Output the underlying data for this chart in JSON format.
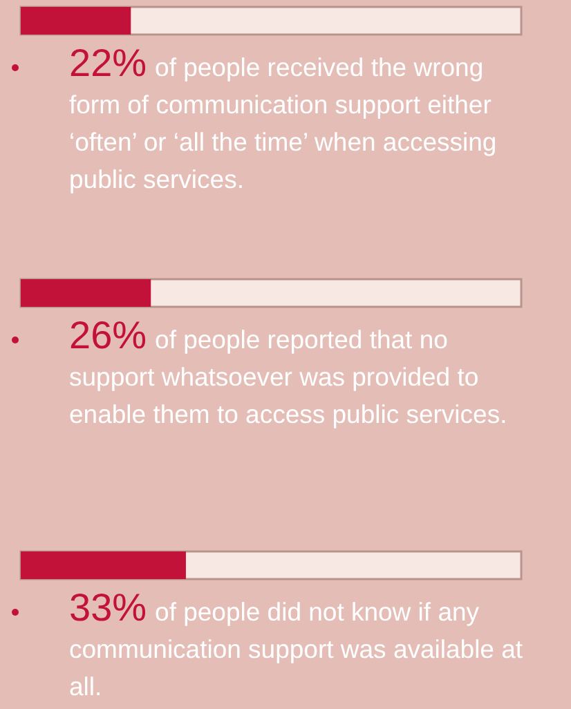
{
  "chart_data": {
    "type": "bar",
    "orientation": "horizontal",
    "categories": [
      null,
      null,
      null
    ],
    "values": [
      22,
      26,
      33
    ],
    "color": "#c3123a",
    "xlim": [
      0,
      100
    ],
    "tick_labels": false,
    "value_labels": [
      "22%",
      "26%",
      "33%"
    ],
    "annotations": [
      "of people received the wrong form of communication support either ‘often’ or ‘all the time’ when accessing public services.",
      "of people reported that no support whatsoever was provided to enable them to access public services.",
      "of people did not know if any communication support was available at all."
    ]
  }
}
